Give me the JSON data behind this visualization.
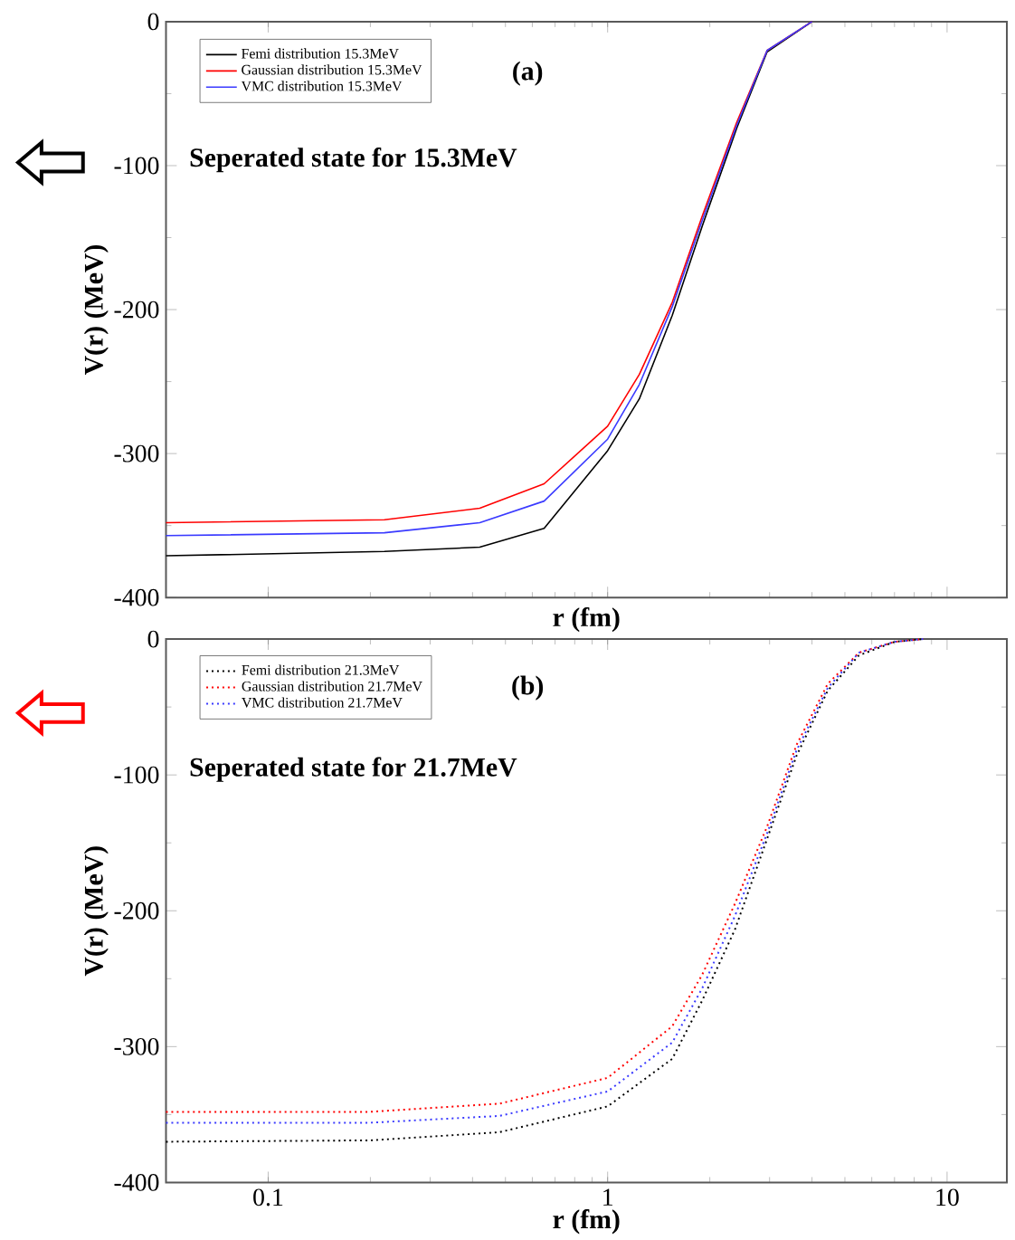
{
  "chart_data": [
    {
      "type": "line",
      "xlabel": "r (fm)",
      "ylabel": "V(r) (MeV)",
      "log": "x",
      "xlim": [
        0.05,
        15
      ],
      "ylim": [
        -400,
        0
      ],
      "xticks": [
        0.1,
        1,
        10
      ],
      "yticks": [
        -400,
        -300,
        -200,
        -100,
        0
      ],
      "tick_labels": "y",
      "legend": "top left",
      "line_style": "solid",
      "annotations": [
        "(a)",
        "Seperated state for 15.3MeV"
      ],
      "x": [
        0.05,
        0.22,
        0.42,
        0.65,
        1.0,
        1.24,
        1.55,
        1.9,
        2.4,
        2.95,
        4.0
      ],
      "series": [
        {
          "name": "Femi distribution 15.3MeV",
          "color": "#000000",
          "values": [
            -371,
            -368,
            -365,
            -352,
            -298,
            -262,
            -204,
            -142,
            -74,
            -21,
            0
          ]
        },
        {
          "name": "Gaussian distribution 15.3MeV",
          "color": "#ff0000",
          "values": [
            -348,
            -346,
            -338,
            -321,
            -281,
            -245,
            -195,
            -135,
            -70,
            -20,
            0
          ]
        },
        {
          "name": "VMC distribution 15.3MeV",
          "color": "#3a3aff",
          "values": [
            -357,
            -355,
            -348,
            -333,
            -290,
            -252,
            -198,
            -138,
            -72,
            -20,
            0
          ]
        }
      ]
    },
    {
      "type": "line",
      "xlabel": "r (fm)",
      "ylabel": "V(r) (MeV)",
      "log": "x",
      "xlim": [
        0.05,
        15
      ],
      "ylim": [
        -400,
        0
      ],
      "xticks": [
        0.1,
        1,
        10
      ],
      "yticks": [
        -400,
        -300,
        -200,
        -100,
        0
      ],
      "legend": "top left",
      "line_style": "dotted",
      "annotations": [
        "(b)",
        "Seperated state for 21.7MeV"
      ],
      "x": [
        0.05,
        0.2,
        0.48,
        1.0,
        1.55,
        1.9,
        2.37,
        2.95,
        3.6,
        4.45,
        5.5,
        7.0,
        8.5
      ],
      "series": [
        {
          "name": "Femi distribution 21.3MeV",
          "color": "#000000",
          "values": [
            -370,
            -369,
            -363,
            -344,
            -309,
            -266,
            -214,
            -147,
            -86,
            -38,
            -12,
            -2,
            0
          ]
        },
        {
          "name": "Gaussian distribution 21.7MeV",
          "color": "#ff0000",
          "values": [
            -348,
            -348,
            -342,
            -323,
            -285,
            -247,
            -195,
            -138,
            -78,
            -33,
            -10,
            -2,
            0
          ]
        },
        {
          "name": "VMC distribution 21.7MeV",
          "color": "#3a3aff",
          "values": [
            -356,
            -356,
            -351,
            -333,
            -297,
            -257,
            -204,
            -143,
            -82,
            -36,
            -10,
            -2,
            0
          ]
        }
      ]
    }
  ]
}
